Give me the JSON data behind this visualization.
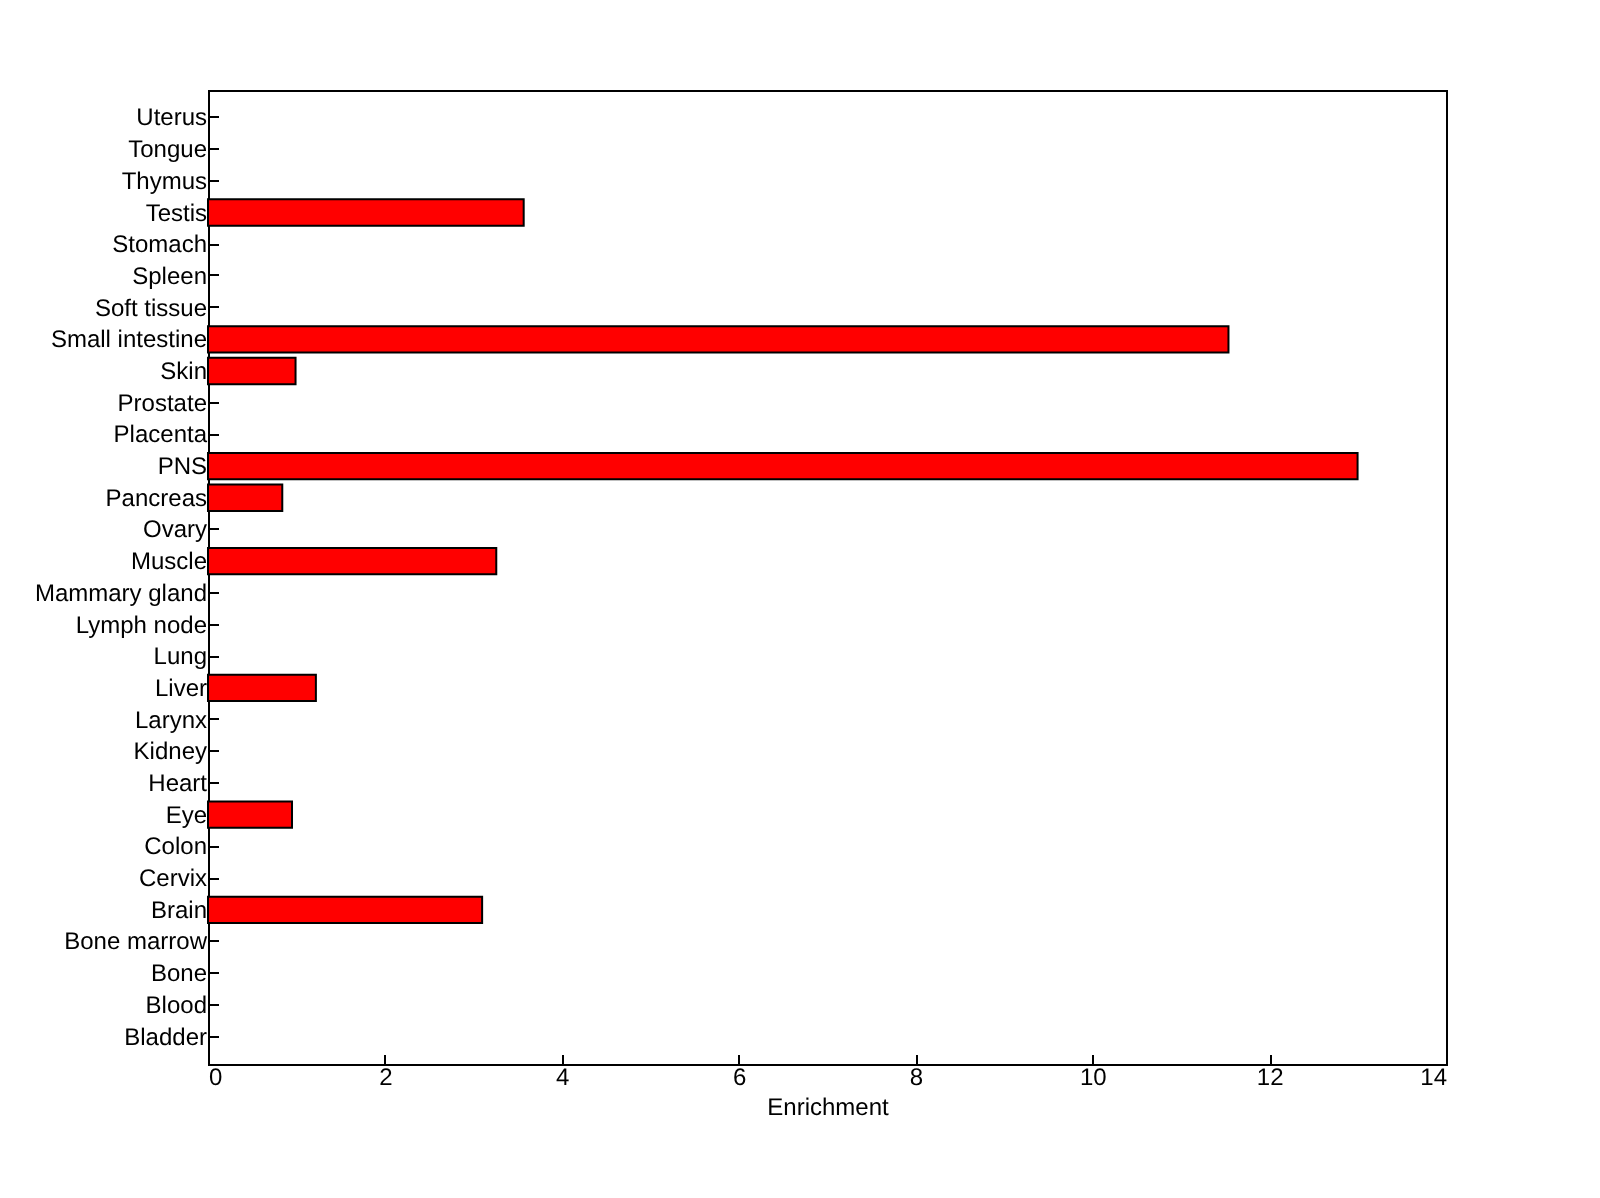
{
  "chart_data": {
    "type": "bar",
    "orientation": "horizontal",
    "xlabel": "Enrichment",
    "categories": [
      "Uterus",
      "Tongue",
      "Thymus",
      "Testis",
      "Stomach",
      "Spleen",
      "Soft tissue",
      "Small intestine",
      "Skin",
      "Prostate",
      "Placenta",
      "PNS",
      "Pancreas",
      "Ovary",
      "Muscle",
      "Mammary gland",
      "Lymph node",
      "Lung",
      "Liver",
      "Larynx",
      "Kidney",
      "Heart",
      "Eye",
      "Colon",
      "Cervix",
      "Brain",
      "Bone marrow",
      "Bone",
      "Blood",
      "Bladder"
    ],
    "values": [
      0,
      0,
      0,
      3.57,
      0,
      0,
      0,
      11.54,
      0.99,
      0,
      0,
      13.0,
      0.84,
      0,
      3.26,
      0,
      0,
      0,
      1.22,
      0,
      0,
      0,
      0.95,
      0,
      0,
      3.1,
      0,
      0,
      0,
      0
    ],
    "color": "#ff0000",
    "xlim": [
      0,
      14
    ],
    "xticks": [
      0,
      2,
      4,
      6,
      8,
      10,
      12,
      14
    ],
    "grid": false
  }
}
